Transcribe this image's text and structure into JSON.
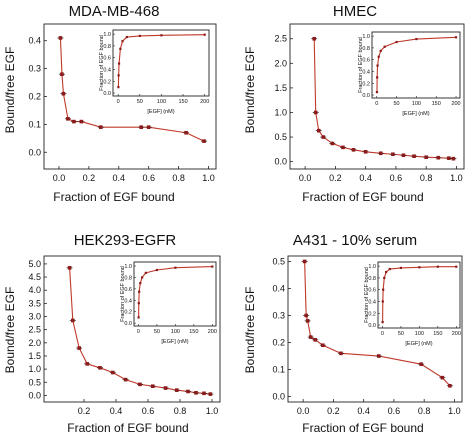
{
  "colors": {
    "line": "#c0392b",
    "marker": "#8b1a1a",
    "axis": "#222222"
  },
  "chart_data": [
    {
      "type": "line",
      "title": "MDA-MB-468",
      "xlabel": "Fraction of EGF bound",
      "ylabel": "Bound/free EGF",
      "xlim": [
        -0.1,
        1.05
      ],
      "ylim": [
        -0.06,
        0.46
      ],
      "xticks": [
        "0.0",
        "0.2",
        "0.4",
        "0.6",
        "0.8",
        "1.0"
      ],
      "yticks": [
        "0.0",
        "0.1",
        "0.2",
        "0.3",
        "0.4"
      ],
      "x": [
        0.01,
        0.02,
        0.03,
        0.06,
        0.1,
        0.15,
        0.28,
        0.55,
        0.6,
        0.85,
        0.97
      ],
      "y": [
        0.41,
        0.28,
        0.21,
        0.12,
        0.11,
        0.11,
        0.09,
        0.09,
        0.09,
        0.07,
        0.04
      ],
      "inset": {
        "xlabel": "[EGF] (nM)",
        "ylabel": "Fraction of EGF bound",
        "xticks": [
          "0",
          "50",
          "100",
          "150",
          "200"
        ],
        "yticks": [
          "0.0",
          "0.2",
          "0.4",
          "0.6",
          "0.8",
          "1.0"
        ],
        "x": [
          0.5,
          1,
          2,
          5,
          10,
          20,
          50,
          100,
          200
        ],
        "y": [
          0.1,
          0.3,
          0.5,
          0.75,
          0.88,
          0.95,
          0.97,
          0.98,
          0.99
        ]
      }
    },
    {
      "type": "line",
      "title": "HMEC",
      "xlabel": "Fraction of EGF bound",
      "ylabel": "Bound/free EGF",
      "xlim": [
        -0.1,
        1.05
      ],
      "ylim": [
        -0.15,
        2.8
      ],
      "xticks": [
        "0.0",
        "0.2",
        "0.4",
        "0.6",
        "0.8",
        "1.0"
      ],
      "yticks": [
        "0.0",
        "0.5",
        "1.0",
        "1.5",
        "2.0",
        "2.5"
      ],
      "x": [
        0.06,
        0.07,
        0.09,
        0.12,
        0.18,
        0.25,
        0.32,
        0.4,
        0.5,
        0.58,
        0.65,
        0.72,
        0.8,
        0.88,
        0.95,
        0.98
      ],
      "y": [
        2.5,
        1.0,
        0.63,
        0.5,
        0.37,
        0.29,
        0.24,
        0.2,
        0.17,
        0.15,
        0.13,
        0.11,
        0.09,
        0.08,
        0.07,
        0.06
      ],
      "inset": {
        "xlabel": "[EGF] (nM)",
        "ylabel": "Fraction of EGF bound",
        "xticks": [
          "0",
          "50",
          "100",
          "150",
          "200"
        ],
        "yticks": [
          "0.0",
          "0.2",
          "0.4",
          "0.6",
          "0.8",
          "1.0"
        ],
        "x": [
          0.5,
          1,
          2,
          5,
          10,
          20,
          50,
          100,
          200
        ],
        "y": [
          0.05,
          0.3,
          0.5,
          0.65,
          0.75,
          0.82,
          0.9,
          0.95,
          0.98
        ]
      }
    },
    {
      "type": "line",
      "title": "HEK293-EGFR",
      "xlabel": "Fraction of EGF bound",
      "ylabel": "Bound/free EGF",
      "xlim": [
        -0.05,
        1.05
      ],
      "ylim": [
        -0.25,
        5.3
      ],
      "xticks": [
        "0.2",
        "0.4",
        "0.6",
        "0.8",
        "1.0"
      ],
      "yticks": [
        "0.0",
        "0.5",
        "1.0",
        "1.5",
        "2.0",
        "2.5",
        "3.0",
        "3.5",
        "4.0",
        "4.5",
        "5.0"
      ],
      "x": [
        0.11,
        0.13,
        0.17,
        0.22,
        0.3,
        0.38,
        0.46,
        0.55,
        0.63,
        0.71,
        0.78,
        0.85,
        0.9,
        0.95,
        0.99
      ],
      "y": [
        4.85,
        2.85,
        1.8,
        1.2,
        1.05,
        0.87,
        0.6,
        0.42,
        0.35,
        0.28,
        0.2,
        0.15,
        0.1,
        0.08,
        0.05
      ],
      "inset": {
        "xlabel": "[EGF] (nM)",
        "ylabel": "Fraction of EGF bound",
        "xticks": [
          "0",
          "50",
          "100",
          "150",
          "200"
        ],
        "yticks": [
          "0.0",
          "0.2",
          "0.4",
          "0.6",
          "0.8",
          "1.0"
        ],
        "x": [
          0.5,
          1,
          2,
          5,
          10,
          20,
          50,
          100,
          200
        ],
        "y": [
          0.1,
          0.35,
          0.55,
          0.7,
          0.8,
          0.88,
          0.93,
          0.97,
          0.99
        ]
      }
    },
    {
      "type": "line",
      "title": "A431 - 10% serum",
      "xlabel": "Fraction of EGF bound",
      "ylabel": "Bound/free EGF",
      "xlim": [
        -0.1,
        1.05
      ],
      "ylim": [
        -0.02,
        0.52
      ],
      "xticks": [
        "0.0",
        "0.2",
        "0.4",
        "0.6",
        "0.8",
        "1.0"
      ],
      "yticks": [
        "0.0",
        "0.1",
        "0.2",
        "0.3",
        "0.4",
        "0.5"
      ],
      "x": [
        0.01,
        0.02,
        0.03,
        0.05,
        0.08,
        0.13,
        0.25,
        0.5,
        0.78,
        0.92,
        0.97
      ],
      "y": [
        0.5,
        0.3,
        0.28,
        0.22,
        0.21,
        0.19,
        0.16,
        0.15,
        0.12,
        0.07,
        0.04
      ],
      "inset": {
        "xlabel": "[EGF] (nM)",
        "ylabel": "Fraction of EGF bound",
        "xticks": [
          "0",
          "50",
          "100",
          "150",
          "200"
        ],
        "yticks": [
          "0.0",
          "0.2",
          "0.4",
          "0.6",
          "0.8",
          "1.0"
        ],
        "x": [
          0.5,
          1,
          2,
          5,
          10,
          20,
          50,
          100,
          150,
          200
        ],
        "y": [
          0.05,
          0.4,
          0.6,
          0.8,
          0.9,
          0.95,
          0.97,
          0.98,
          0.99,
          0.99
        ]
      }
    }
  ]
}
